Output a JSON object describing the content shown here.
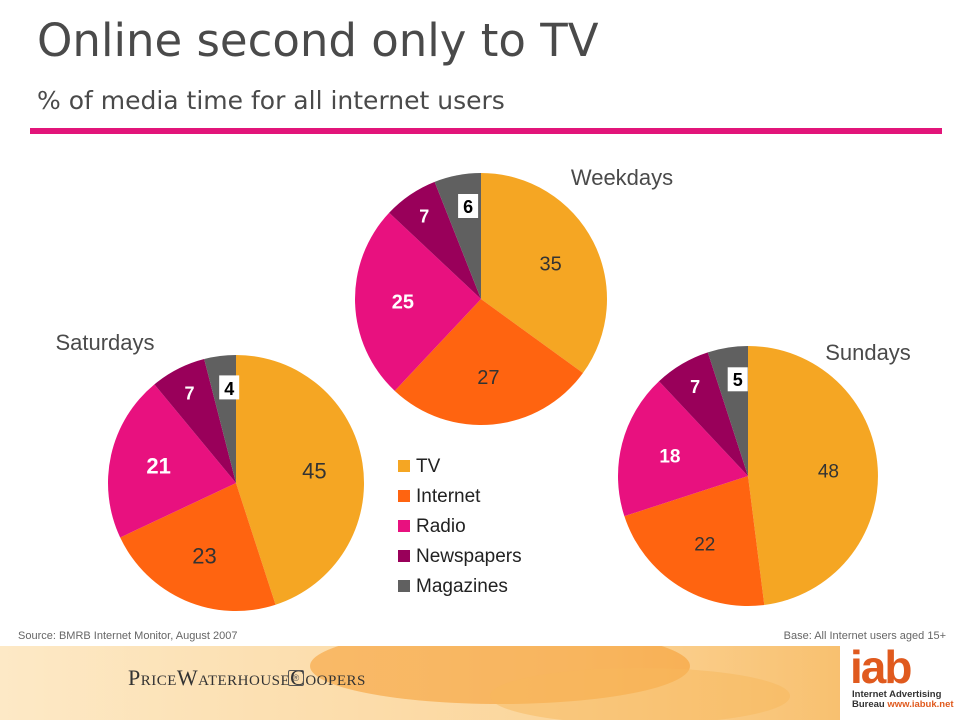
{
  "header": {
    "title": "Online second only to TV",
    "subtitle": "% of media time for all internet users"
  },
  "legend": [
    {
      "label": "TV",
      "color": "#f5a623"
    },
    {
      "label": "Internet",
      "color": "#ff6410"
    },
    {
      "label": "Radio",
      "color": "#e8117f"
    },
    {
      "label": "Newspapers",
      "color": "#99005a"
    },
    {
      "label": "Magazines",
      "color": "#606060"
    }
  ],
  "chart_data": [
    {
      "type": "pie",
      "title": "Weekdays",
      "categories": [
        "TV",
        "Internet",
        "Radio",
        "Newspapers",
        "Magazines"
      ],
      "values": [
        35,
        27,
        25,
        7,
        6
      ]
    },
    {
      "type": "pie",
      "title": "Saturdays",
      "categories": [
        "TV",
        "Internet",
        "Radio",
        "Newspapers",
        "Magazines"
      ],
      "values": [
        45,
        23,
        21,
        7,
        4
      ]
    },
    {
      "type": "pie",
      "title": "Sundays",
      "categories": [
        "TV",
        "Internet",
        "Radio",
        "Newspapers",
        "Magazines"
      ],
      "values": [
        48,
        22,
        18,
        7,
        5
      ]
    }
  ],
  "footer": {
    "source": "Source: BMRB Internet Monitor, August 2007",
    "base": "Base: All Internet users aged 15+",
    "pwc_logo": "PriceWaterhouseCoopers",
    "iab_logo": "iab",
    "iab_line1": "Internet Advertising",
    "iab_line2": "Bureau",
    "iab_url": "www.iabuk.net"
  },
  "colors": {
    "accent_rule": "#e2157a",
    "band_light": "#fbd59a",
    "band_dark": "#f08a1e"
  }
}
